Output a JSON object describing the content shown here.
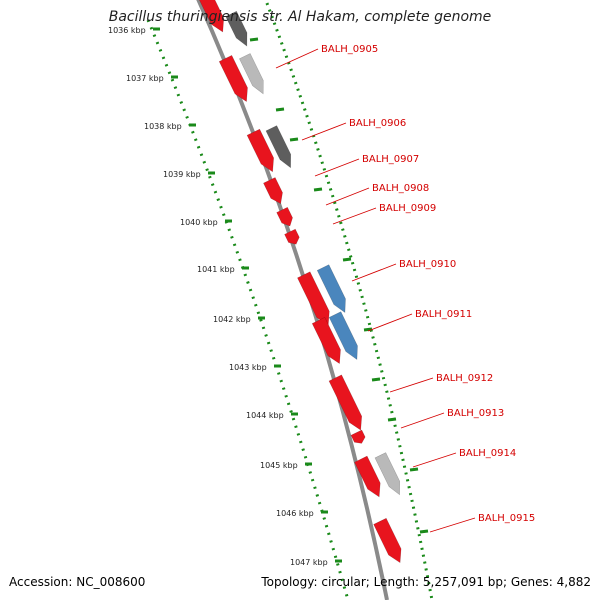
{
  "title": "Bacillus thuringiensis str. Al Hakam, complete genome",
  "footer": {
    "accession": "Accession: NC_008600",
    "summary": "Topology: circular; Length: 5,257,091 bp; Genes: 4,882"
  },
  "colors": {
    "gene_red": "#e8141e",
    "gene_dark": "#5e5e5e",
    "gene_light": "#b9b9b9",
    "gene_blue": "#4a86bd",
    "label_red": "#d40000",
    "tick_green": "#1a8a1a",
    "backbone": "#8a8a8a"
  },
  "chart_data": {
    "type": "genome-map",
    "kbp_ticks": [
      "1036 kbp",
      "1037 kbp",
      "1038 kbp",
      "1039 kbp",
      "1040 kbp",
      "1041 kbp",
      "1042 kbp",
      "1043 kbp",
      "1044 kbp",
      "1045 kbp",
      "1046 kbp",
      "1047 kbp"
    ],
    "gene_labels": [
      "BALH_0905",
      "BALH_0906",
      "BALH_0907",
      "BALH_0908",
      "BALH_0909",
      "BALH_0910",
      "BALH_0911",
      "BALH_0912",
      "BALH_0913",
      "BALH_0914",
      "BALH_0915"
    ]
  }
}
